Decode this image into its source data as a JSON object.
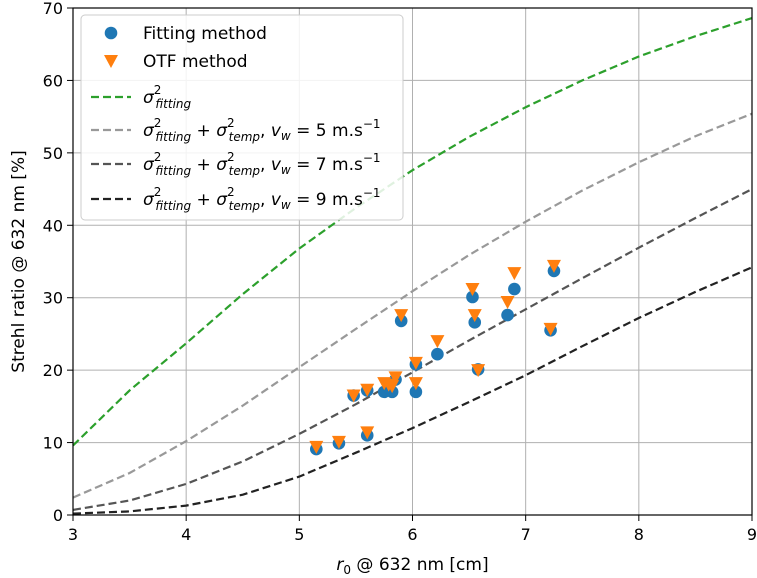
{
  "chart_data": {
    "type": "scatter",
    "xlabel": {
      "main": "r",
      "sub": "0",
      "rest": " @ 632 nm [cm]"
    },
    "ylabel": "Strehl ratio @ 632 nm [%]",
    "xlim": [
      3,
      9
    ],
    "ylim": [
      0,
      70
    ],
    "x_ticks": [
      3,
      4,
      5,
      6,
      7,
      8,
      9
    ],
    "y_ticks": [
      0,
      10,
      20,
      30,
      40,
      50,
      60,
      70
    ],
    "grid": true,
    "legend_position": "upper-left",
    "series": [
      {
        "name": "Fitting method",
        "kind": "scatter",
        "marker": "circle",
        "color": "#1f77b4",
        "points": [
          [
            5.15,
            9.1
          ],
          [
            5.35,
            9.9
          ],
          [
            5.6,
            11.0
          ],
          [
            5.48,
            16.5
          ],
          [
            5.6,
            17.2
          ],
          [
            5.75,
            17.0
          ],
          [
            5.82,
            17.0
          ],
          [
            5.79,
            17.6
          ],
          [
            5.85,
            18.7
          ],
          [
            5.9,
            26.8
          ],
          [
            6.03,
            20.8
          ],
          [
            6.03,
            17.0
          ],
          [
            6.22,
            22.2
          ],
          [
            6.53,
            30.1
          ],
          [
            6.55,
            26.6
          ],
          [
            6.58,
            20.1
          ],
          [
            6.84,
            27.6
          ],
          [
            6.9,
            31.2
          ],
          [
            7.22,
            25.5
          ],
          [
            7.25,
            33.7
          ]
        ]
      },
      {
        "name": "OTF method",
        "kind": "scatter",
        "marker": "triangle-down",
        "color": "#ff7f0e",
        "points": [
          [
            5.15,
            9.4
          ],
          [
            5.35,
            10.1
          ],
          [
            5.6,
            11.4
          ],
          [
            5.48,
            16.5
          ],
          [
            5.6,
            17.3
          ],
          [
            5.75,
            18.2
          ],
          [
            5.82,
            17.8
          ],
          [
            5.79,
            18.0
          ],
          [
            5.85,
            19.0
          ],
          [
            5.9,
            27.6
          ],
          [
            6.03,
            21.0
          ],
          [
            6.03,
            18.2
          ],
          [
            6.22,
            24.0
          ],
          [
            6.53,
            31.2
          ],
          [
            6.55,
            27.6
          ],
          [
            6.58,
            20.0
          ],
          [
            6.84,
            29.4
          ],
          [
            6.9,
            33.4
          ],
          [
            7.22,
            25.7
          ],
          [
            7.25,
            34.4
          ]
        ]
      },
      {
        "legend": {
          "base": "σ",
          "sup": "2",
          "sub": "fitting",
          "suffix": ""
        },
        "kind": "line",
        "dash": true,
        "color": "#2ca02c",
        "points": [
          [
            3,
            9.6
          ],
          [
            3.5,
            17.2
          ],
          [
            4,
            23.7
          ],
          [
            4.5,
            30.5
          ],
          [
            5,
            36.8
          ],
          [
            5.5,
            42.4
          ],
          [
            6,
            47.6
          ],
          [
            6.5,
            52.2
          ],
          [
            7,
            56.3
          ],
          [
            7.5,
            60.0
          ],
          [
            8,
            63.3
          ],
          [
            8.5,
            66.1
          ],
          [
            9,
            68.6
          ]
        ]
      },
      {
        "legend": {
          "base": "σ",
          "sup": "2",
          "sub": "fitting",
          "plus": " + ",
          "base2": "σ",
          "sup2": "2",
          "sub2": "temp",
          "suffix": ", ",
          "v": "v",
          "vsub": "w",
          "eq": " = 5 m.s",
          "expo": "−1"
        },
        "kind": "line",
        "dash": true,
        "color": "#999999",
        "points": [
          [
            3,
            2.4
          ],
          [
            3.5,
            5.8
          ],
          [
            4,
            10.2
          ],
          [
            4.5,
            15.1
          ],
          [
            5,
            20.4
          ],
          [
            5.5,
            25.7
          ],
          [
            6,
            30.9
          ],
          [
            6.5,
            35.9
          ],
          [
            7,
            40.5
          ],
          [
            7.5,
            44.8
          ],
          [
            8,
            48.7
          ],
          [
            8.5,
            52.3
          ],
          [
            9,
            55.4
          ]
        ]
      },
      {
        "legend": {
          "base": "σ",
          "sup": "2",
          "sub": "fitting",
          "plus": " + ",
          "base2": "σ",
          "sup2": "2",
          "sub2": "temp",
          "suffix": ", ",
          "v": "v",
          "vsub": "w",
          "eq": " = 7 m.s",
          "expo": "−1"
        },
        "kind": "line",
        "dash": true,
        "color": "#555555",
        "points": [
          [
            3,
            0.7
          ],
          [
            3.5,
            2.0
          ],
          [
            4,
            4.3
          ],
          [
            4.5,
            7.4
          ],
          [
            5,
            11.2
          ],
          [
            5.5,
            15.3
          ],
          [
            6,
            19.7
          ],
          [
            6.5,
            24.1
          ],
          [
            7,
            28.4
          ],
          [
            7.5,
            32.7
          ],
          [
            8,
            36.9
          ],
          [
            8.5,
            41.0
          ],
          [
            9,
            45.0
          ]
        ]
      },
      {
        "legend": {
          "base": "σ",
          "sup": "2",
          "sub": "fitting",
          "plus": " + ",
          "base2": "σ",
          "sup2": "2",
          "sub2": "temp",
          "suffix": ", ",
          "v": "v",
          "vsub": "w",
          "eq": " = 9 m.s",
          "expo": "−1"
        },
        "kind": "line",
        "dash": true,
        "color": "#222222",
        "points": [
          [
            3,
            0.2
          ],
          [
            3.5,
            0.5
          ],
          [
            4,
            1.3
          ],
          [
            4.5,
            2.8
          ],
          [
            5,
            5.3
          ],
          [
            5.5,
            8.6
          ],
          [
            6,
            12.0
          ],
          [
            6.5,
            15.6
          ],
          [
            7,
            19.3
          ],
          [
            7.5,
            23.3
          ],
          [
            8,
            27.2
          ],
          [
            8.5,
            30.8
          ],
          [
            9,
            34.2
          ]
        ]
      }
    ]
  }
}
